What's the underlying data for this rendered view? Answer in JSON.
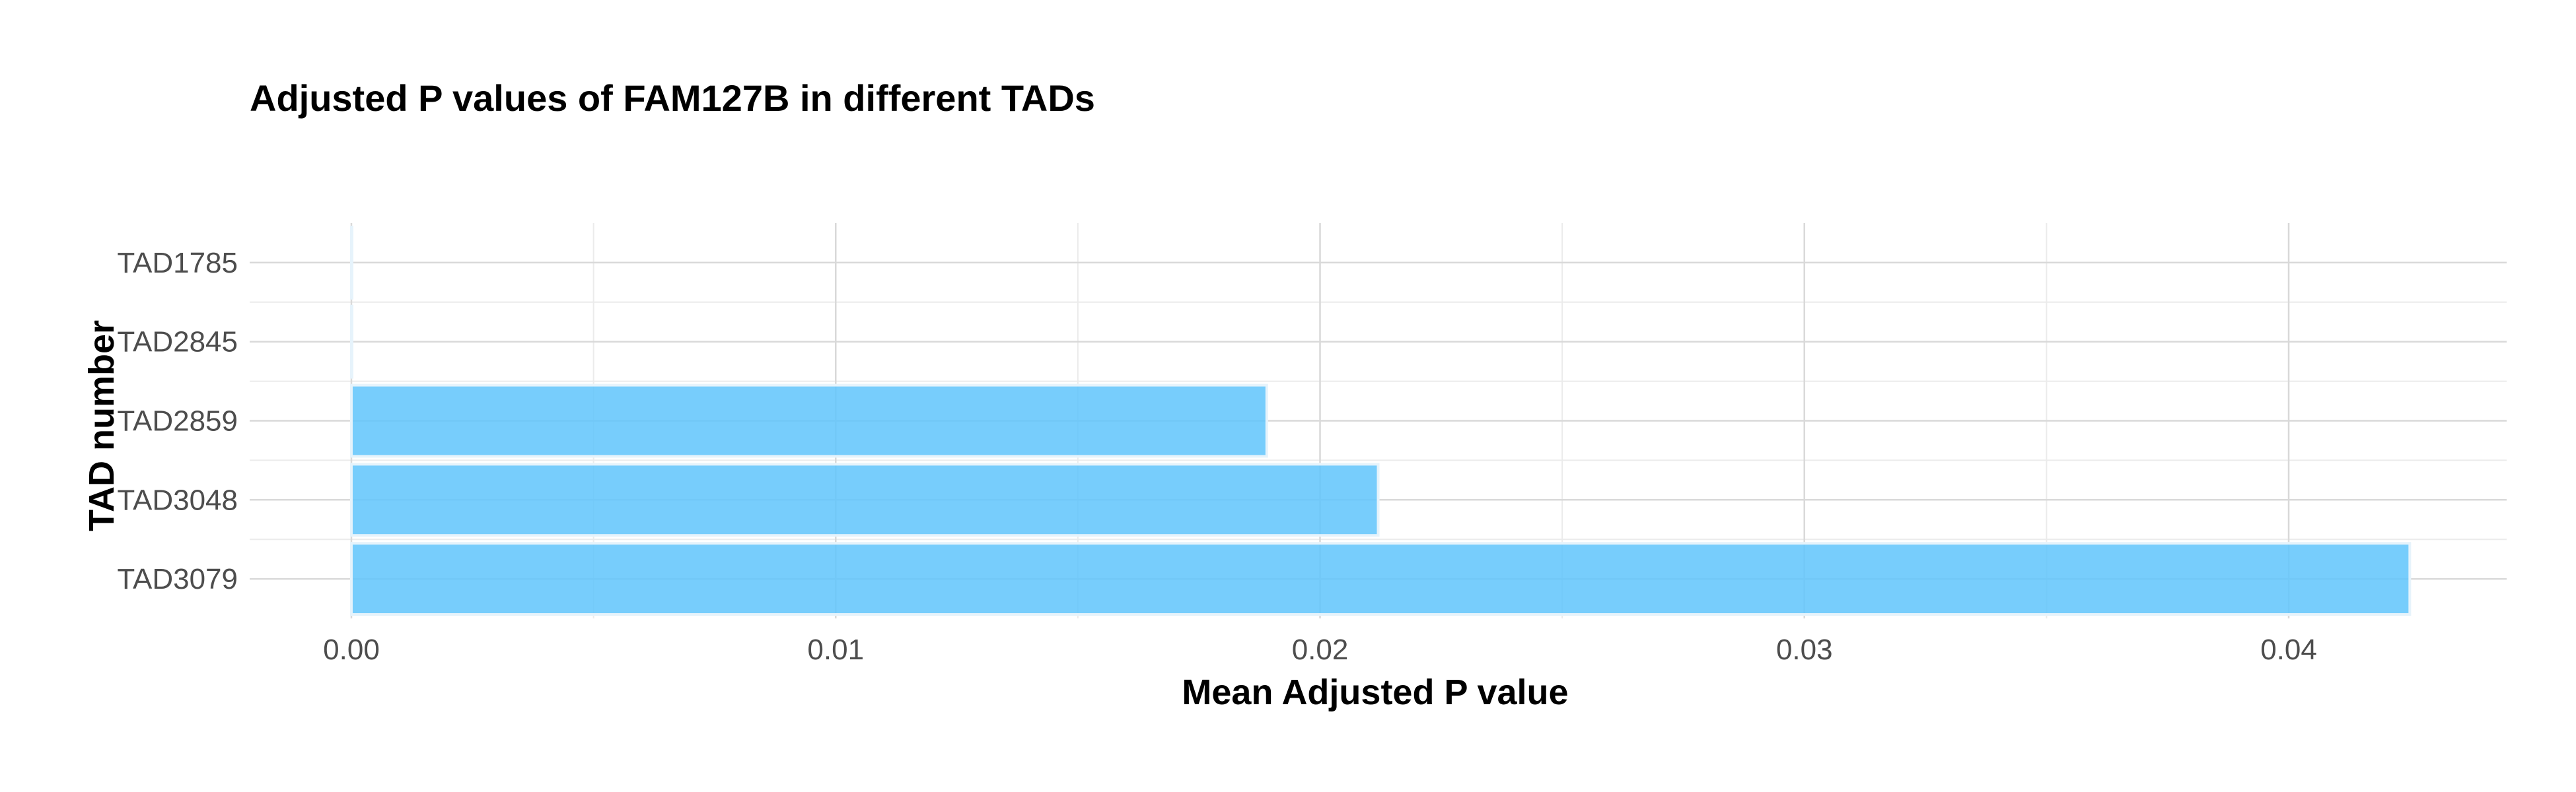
{
  "chart_data": {
    "type": "bar",
    "orientation": "horizontal",
    "title": "Adjusted P values of FAM127B in different TADs",
    "xlabel": "Mean Adjusted P value",
    "ylabel": "TAD number",
    "categories": [
      "TAD1785",
      "TAD2845",
      "TAD2859",
      "TAD3048",
      "TAD3079"
    ],
    "values": [
      0.0,
      0.0,
      0.0189,
      0.0212,
      0.0425
    ],
    "xlim": [
      -0.0021,
      0.0445
    ],
    "xticks": [
      0.0,
      0.01,
      0.02,
      0.03,
      0.04
    ],
    "xtick_labels": [
      "0.00",
      "0.01",
      "0.02",
      "0.03",
      "0.04"
    ],
    "grid": true,
    "legend": "none",
    "bar_color": "#5fc4fb"
  }
}
